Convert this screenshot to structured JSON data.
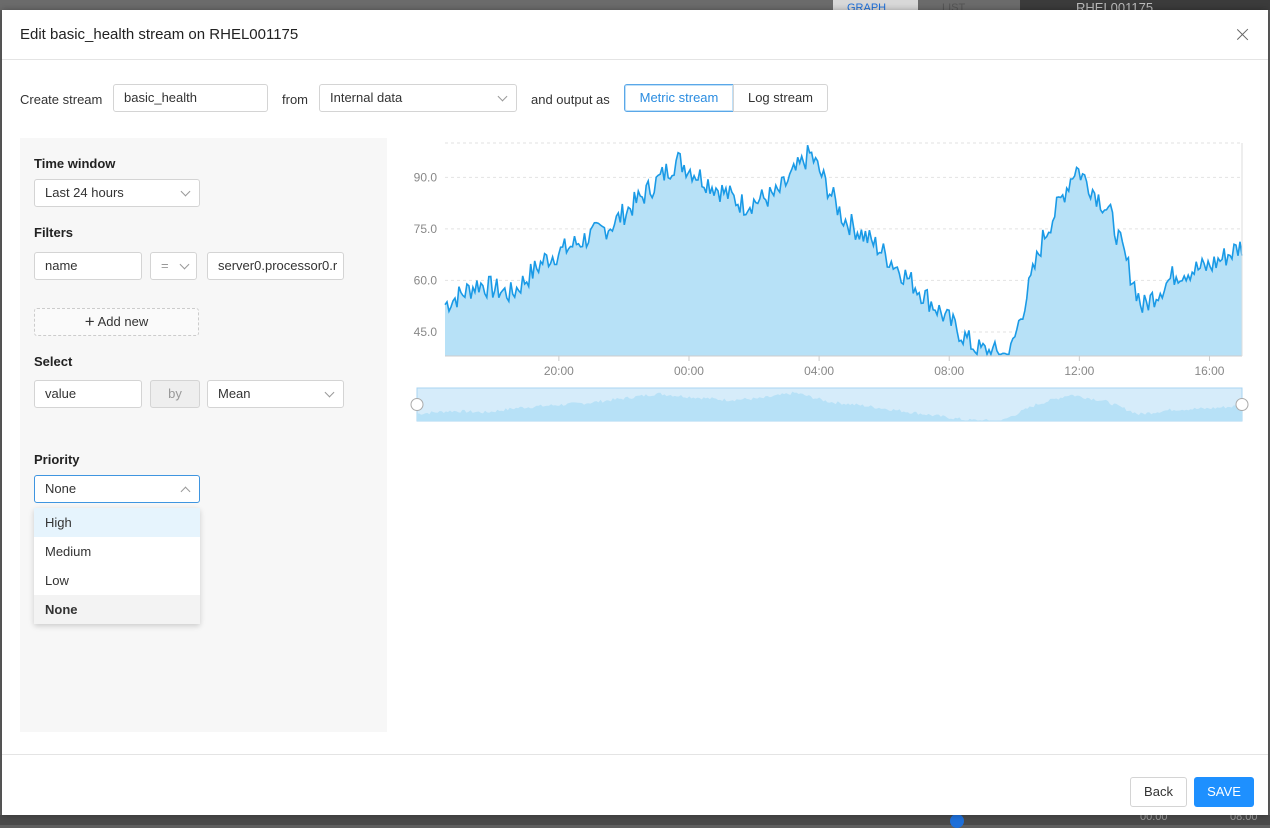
{
  "background": {
    "graph_tab": "GRAPH",
    "list_tab": "LIST",
    "host": "RHEL001175",
    "time_left": "00:00",
    "time_right": "08:00"
  },
  "modal": {
    "title": "Edit basic_health stream on RHEL001175"
  },
  "stream": {
    "create_label": "Create stream",
    "name_value": "basic_health",
    "from_label": "from",
    "source_value": "Internal data",
    "output_label": "and output as",
    "output_options": [
      "Metric stream",
      "Log stream"
    ],
    "output_selected": "Metric stream"
  },
  "time_window": {
    "label": "Time window",
    "value": "Last 24 hours"
  },
  "filters": {
    "label": "Filters",
    "field": "name",
    "operator": "=",
    "value": "server0.processor0.r",
    "add_label": "Add new"
  },
  "select": {
    "label": "Select",
    "field": "value",
    "by": "by",
    "aggregation": "Mean"
  },
  "priority": {
    "label": "Priority",
    "value": "None",
    "options": [
      "High",
      "Medium",
      "Low",
      "None"
    ],
    "highlighted": "High"
  },
  "footer": {
    "back_label": "Back",
    "save_label": "SAVE"
  },
  "colors": {
    "accent": "#1e90ff",
    "series_line": "#1a9ae6",
    "series_fill": "#b7e1f7"
  },
  "chart_data": {
    "type": "area",
    "title": "",
    "xlabel": "",
    "ylabel": "",
    "y_ticks": [
      "45.0",
      "60.0",
      "75.0",
      "90.0"
    ],
    "x_ticks": [
      "20:00",
      "00:00",
      "04:00",
      "08:00",
      "12:00",
      "16:00"
    ],
    "x": [
      "16:30",
      "17:30",
      "18:30",
      "19:30",
      "20:30",
      "21:30",
      "22:30",
      "23:30",
      "00:30",
      "01:30",
      "02:30",
      "03:30",
      "04:30",
      "05:30",
      "06:30",
      "07:30",
      "08:30",
      "09:30",
      "10:30",
      "11:30",
      "12:30",
      "13:30",
      "14:30",
      "15:30",
      "16:30"
    ],
    "series": [
      {
        "values": [
          53,
          59,
          56,
          66,
          71,
          76,
          85,
          95,
          88,
          82,
          85,
          97,
          78,
          70,
          60,
          50,
          40,
          38,
          72,
          93,
          80,
          52,
          62,
          64,
          70
        ]
      }
    ],
    "ylim": [
      38,
      100
    ],
    "grid": "horizontal dashed",
    "has_range_selector": true
  }
}
